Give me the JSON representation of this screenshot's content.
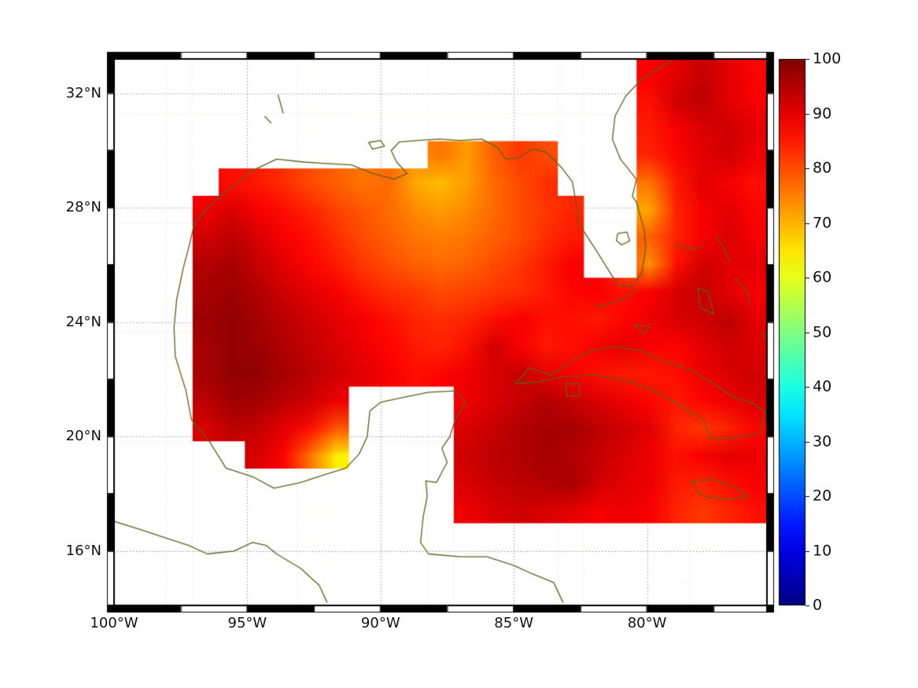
{
  "chart_data": {
    "type": "heatmap",
    "title": "",
    "colormap": "jet",
    "extent": {
      "lon_min": -100,
      "lon_max": -75.5,
      "lat_min": 14.1,
      "lat_max": 33.2
    },
    "x_axis": {
      "ticks": [
        {
          "lon": -100,
          "label": "100°W"
        },
        {
          "lon": -95,
          "label": "95°W"
        },
        {
          "lon": -90,
          "label": "90°W"
        },
        {
          "lon": -85,
          "label": "85°W"
        },
        {
          "lon": -80,
          "label": "80°W"
        }
      ]
    },
    "y_axis": {
      "ticks": [
        {
          "lat": 32,
          "label": "32°N"
        },
        {
          "lat": 28,
          "label": "28°N"
        },
        {
          "lat": 24,
          "label": "24°N"
        },
        {
          "lat": 20,
          "label": "20°N"
        },
        {
          "lat": 16,
          "label": "16°N"
        }
      ]
    },
    "gridlines": {
      "lons": [
        -100,
        -95,
        -90,
        -85,
        -80
      ],
      "lats": [
        16,
        20,
        24,
        28,
        32
      ]
    },
    "colorbar": {
      "min": 0,
      "max": 100,
      "ticks": [
        100,
        90,
        80,
        70,
        60,
        50,
        40,
        30,
        20,
        10,
        0
      ]
    },
    "frame": {
      "x_interval": 2.5,
      "y_interval": 2
    },
    "colors": {
      "coastline": "#5f5f1f",
      "gridline": "#9a9a9a",
      "land": "#ffffff",
      "frame": "#000000"
    },
    "field": {
      "nrows": 20,
      "ncols": 25,
      "values": [
        [
          null,
          null,
          null,
          null,
          null,
          null,
          null,
          null,
          null,
          null,
          null,
          null,
          null,
          null,
          null,
          null,
          null,
          null,
          null,
          null,
          88,
          90,
          93,
          90,
          87
        ],
        [
          null,
          null,
          null,
          null,
          null,
          null,
          null,
          null,
          null,
          null,
          null,
          null,
          null,
          null,
          null,
          null,
          null,
          null,
          null,
          null,
          86,
          92,
          94,
          90,
          88
        ],
        [
          null,
          null,
          null,
          null,
          null,
          null,
          null,
          null,
          null,
          null,
          null,
          null,
          null,
          null,
          null,
          null,
          null,
          null,
          null,
          null,
          85,
          88,
          91,
          92,
          90
        ],
        [
          null,
          null,
          null,
          null,
          null,
          null,
          null,
          null,
          null,
          null,
          null,
          null,
          76,
          72,
          78,
          82,
          80,
          null,
          null,
          null,
          84,
          87,
          90,
          92,
          89
        ],
        [
          null,
          null,
          null,
          null,
          86,
          85,
          83,
          80,
          78,
          76,
          77,
          71,
          69,
          72,
          77,
          80,
          83,
          null,
          null,
          null,
          76,
          85,
          90,
          88,
          86
        ],
        [
          null,
          null,
          null,
          89,
          91,
          88,
          86,
          84,
          81,
          79,
          77,
          74,
          72,
          74,
          77,
          80,
          82,
          84,
          null,
          null,
          71,
          84,
          88,
          90,
          87
        ],
        [
          null,
          null,
          null,
          92,
          94,
          91,
          88,
          86,
          83,
          80,
          78,
          76,
          75,
          76,
          78,
          80,
          83,
          85,
          null,
          null,
          78,
          84,
          88,
          91,
          88
        ],
        [
          null,
          null,
          null,
          95,
          96,
          93,
          90,
          87,
          85,
          82,
          80,
          78,
          77,
          78,
          80,
          82,
          85,
          88,
          null,
          null,
          73,
          86,
          92,
          90,
          90
        ],
        [
          null,
          null,
          null,
          96,
          97,
          95,
          92,
          90,
          88,
          85,
          83,
          82,
          80,
          81,
          82,
          83,
          85,
          87,
          88,
          86,
          88,
          91,
          93,
          90,
          88
        ],
        [
          null,
          null,
          null,
          97,
          98,
          96,
          94,
          92,
          90,
          88,
          86,
          84,
          83,
          84,
          86,
          88,
          86,
          86,
          85,
          87,
          89,
          91,
          92,
          94,
          90
        ],
        [
          null,
          null,
          null,
          96,
          98,
          97,
          95,
          93,
          91,
          89,
          87,
          85,
          84,
          86,
          92,
          88,
          85,
          86,
          88,
          90,
          88,
          87,
          90,
          92,
          91
        ],
        [
          null,
          null,
          null,
          96,
          98,
          98,
          96,
          94,
          92,
          90,
          88,
          86,
          87,
          89,
          91,
          93,
          90,
          88,
          86,
          85,
          85,
          86,
          89,
          91,
          92
        ],
        [
          null,
          null,
          null,
          94,
          97,
          96,
          94,
          92,
          89,
          null,
          null,
          null,
          null,
          89,
          91,
          93,
          95,
          93,
          91,
          89,
          87,
          85,
          87,
          89,
          91
        ],
        [
          null,
          null,
          null,
          91,
          94,
          93,
          90,
          86,
          79,
          null,
          null,
          null,
          null,
          91,
          93,
          95,
          96,
          96,
          94,
          92,
          90,
          84,
          82,
          84,
          87
        ],
        [
          null,
          null,
          null,
          null,
          null,
          91,
          87,
          76,
          64,
          null,
          null,
          null,
          null,
          92,
          94,
          95,
          96,
          95,
          93,
          91,
          89,
          86,
          88,
          90,
          89
        ],
        [
          null,
          null,
          null,
          null,
          null,
          null,
          null,
          null,
          null,
          null,
          null,
          null,
          null,
          91,
          93,
          94,
          95,
          96,
          92,
          90,
          89,
          85,
          84,
          86,
          88
        ],
        [
          null,
          null,
          null,
          null,
          null,
          null,
          null,
          null,
          null,
          null,
          null,
          null,
          null,
          89,
          91,
          92,
          91,
          90,
          88,
          89,
          88,
          84,
          82,
          84,
          86
        ],
        [
          null,
          null,
          null,
          null,
          null,
          null,
          null,
          null,
          null,
          null,
          null,
          null,
          null,
          null,
          null,
          null,
          null,
          null,
          null,
          null,
          null,
          null,
          null,
          null,
          null
        ],
        [
          null,
          null,
          null,
          null,
          null,
          null,
          null,
          null,
          null,
          null,
          null,
          null,
          null,
          null,
          null,
          null,
          null,
          null,
          null,
          null,
          null,
          null,
          null,
          null,
          null
        ],
        [
          null,
          null,
          null,
          null,
          null,
          null,
          null,
          null,
          null,
          null,
          null,
          null,
          null,
          null,
          null,
          null,
          null,
          null,
          null,
          null,
          null,
          null,
          null,
          null,
          null
        ]
      ]
    },
    "coastlines": {
      "us_gulf_atlantic": [
        [
          -97.4,
          25.9
        ],
        [
          -97.2,
          26.6
        ],
        [
          -97.0,
          27.4
        ],
        [
          -96.4,
          28.1
        ],
        [
          -95.6,
          28.7
        ],
        [
          -94.8,
          29.3
        ],
        [
          -93.9,
          29.7
        ],
        [
          -92.9,
          29.6
        ],
        [
          -92.1,
          29.55
        ],
        [
          -91.1,
          29.5
        ],
        [
          -90.3,
          29.2
        ],
        [
          -89.5,
          29.0
        ],
        [
          -89.0,
          29.2
        ],
        [
          -89.4,
          29.6
        ],
        [
          -89.6,
          30.0
        ],
        [
          -89.3,
          30.3
        ],
        [
          -88.6,
          30.35
        ],
        [
          -87.8,
          30.4
        ],
        [
          -87.0,
          30.35
        ],
        [
          -86.2,
          30.4
        ],
        [
          -85.6,
          30.1
        ],
        [
          -85.3,
          29.7
        ],
        [
          -84.8,
          29.75
        ],
        [
          -84.3,
          30.05
        ],
        [
          -83.8,
          29.95
        ],
        [
          -83.2,
          29.4
        ],
        [
          -82.8,
          28.9
        ],
        [
          -82.65,
          28.1
        ],
        [
          -82.6,
          27.5
        ],
        [
          -81.9,
          26.5
        ],
        [
          -81.5,
          25.9
        ],
        [
          -81.1,
          25.3
        ],
        [
          -80.6,
          25.25
        ],
        [
          -80.2,
          25.7
        ],
        [
          -80.05,
          26.6
        ],
        [
          -80.1,
          27.2
        ],
        [
          -80.4,
          28.2
        ],
        [
          -80.55,
          28.4
        ],
        [
          -80.4,
          29.0
        ],
        [
          -81.0,
          29.7
        ],
        [
          -81.3,
          30.4
        ],
        [
          -81.2,
          31.2
        ],
        [
          -80.8,
          31.9
        ],
        [
          -80.2,
          32.5
        ],
        [
          -79.5,
          32.9
        ],
        [
          -78.9,
          33.3
        ]
      ],
      "mexico_central_america": [
        [
          -97.4,
          25.9
        ],
        [
          -97.65,
          24.8
        ],
        [
          -97.75,
          23.8
        ],
        [
          -97.7,
          22.8
        ],
        [
          -97.3,
          21.6
        ],
        [
          -97.1,
          20.6
        ],
        [
          -96.4,
          19.8
        ],
        [
          -95.8,
          18.9
        ],
        [
          -94.8,
          18.6
        ],
        [
          -94.0,
          18.2
        ],
        [
          -93.0,
          18.4
        ],
        [
          -92.0,
          18.7
        ],
        [
          -91.3,
          18.9
        ],
        [
          -90.8,
          19.4
        ],
        [
          -90.5,
          20.0
        ],
        [
          -90.4,
          20.9
        ],
        [
          -90.0,
          21.2
        ],
        [
          -89.0,
          21.4
        ],
        [
          -88.2,
          21.55
        ],
        [
          -87.2,
          21.6
        ],
        [
          -86.8,
          21.2
        ],
        [
          -87.2,
          20.6
        ],
        [
          -87.4,
          20.0
        ],
        [
          -87.7,
          19.6
        ],
        [
          -87.5,
          19.1
        ],
        [
          -87.9,
          18.4
        ],
        [
          -88.3,
          18.45
        ],
        [
          -88.25,
          17.9
        ],
        [
          -88.4,
          17.2
        ],
        [
          -88.5,
          16.3
        ],
        [
          -88.2,
          15.9
        ],
        [
          -87.0,
          15.8
        ],
        [
          -86.0,
          15.8
        ],
        [
          -85.0,
          15.5
        ],
        [
          -84.3,
          15.2
        ],
        [
          -83.5,
          14.9
        ],
        [
          -83.15,
          14.2
        ]
      ],
      "pacific_coast": [
        [
          -100.2,
          17.1
        ],
        [
          -99.0,
          16.75
        ],
        [
          -98.2,
          16.5
        ],
        [
          -97.2,
          16.2
        ],
        [
          -96.5,
          15.9
        ],
        [
          -95.5,
          16.0
        ],
        [
          -94.8,
          16.3
        ],
        [
          -94.3,
          16.2
        ],
        [
          -93.9,
          15.9
        ],
        [
          -93.0,
          15.4
        ],
        [
          -92.3,
          14.8
        ],
        [
          -92.0,
          14.2
        ]
      ],
      "cuba": [
        [
          -84.95,
          21.85
        ],
        [
          -84.4,
          22.4
        ],
        [
          -83.6,
          22.15
        ],
        [
          -82.9,
          22.6
        ],
        [
          -82.1,
          23.0
        ],
        [
          -81.2,
          23.15
        ],
        [
          -80.2,
          23.0
        ],
        [
          -79.3,
          22.6
        ],
        [
          -78.4,
          22.35
        ],
        [
          -77.6,
          21.9
        ],
        [
          -76.8,
          21.4
        ],
        [
          -76.0,
          21.15
        ],
        [
          -75.55,
          20.85
        ],
        [
          -75.8,
          20.1
        ],
        [
          -76.8,
          19.95
        ],
        [
          -77.6,
          19.9
        ],
        [
          -77.9,
          20.6
        ],
        [
          -78.6,
          21.0
        ],
        [
          -79.6,
          21.55
        ],
        [
          -80.7,
          21.95
        ],
        [
          -81.9,
          22.15
        ],
        [
          -83.1,
          22.1
        ],
        [
          -84.2,
          21.9
        ],
        [
          -84.95,
          21.85
        ]
      ],
      "isla_juventud": [
        [
          -83.05,
          21.85
        ],
        [
          -82.55,
          21.85
        ],
        [
          -82.5,
          21.45
        ],
        [
          -83.0,
          21.4
        ],
        [
          -83.05,
          21.85
        ]
      ],
      "jamaica": [
        [
          -78.35,
          18.45
        ],
        [
          -77.5,
          18.5
        ],
        [
          -76.6,
          18.2
        ],
        [
          -76.2,
          17.9
        ],
        [
          -77.1,
          17.8
        ],
        [
          -78.0,
          17.95
        ],
        [
          -78.35,
          18.45
        ]
      ],
      "florida_keys": [
        [
          -80.35,
          25.15
        ],
        [
          -80.8,
          24.85
        ],
        [
          -81.4,
          24.65
        ],
        [
          -81.9,
          24.55
        ]
      ],
      "lake_okeechobee": [
        [
          -81.1,
          27.1
        ],
        [
          -80.75,
          27.15
        ],
        [
          -80.65,
          26.85
        ],
        [
          -80.95,
          26.7
        ],
        [
          -81.15,
          26.85
        ],
        [
          -81.1,
          27.1
        ]
      ],
      "lake_pontchartrain": [
        [
          -90.45,
          30.28
        ],
        [
          -90.0,
          30.35
        ],
        [
          -89.85,
          30.15
        ],
        [
          -90.3,
          30.05
        ],
        [
          -90.45,
          30.28
        ]
      ],
      "grand_bahama": [
        [
          -78.95,
          26.7
        ],
        [
          -78.2,
          26.55
        ],
        [
          -77.9,
          26.7
        ]
      ],
      "abaco": [
        [
          -77.4,
          27.0
        ],
        [
          -77.1,
          26.55
        ],
        [
          -76.9,
          26.1
        ]
      ],
      "andros": [
        [
          -78.1,
          25.2
        ],
        [
          -77.7,
          25.05
        ],
        [
          -77.5,
          24.3
        ],
        [
          -78.0,
          24.5
        ],
        [
          -78.1,
          25.2
        ]
      ],
      "eleuthera": [
        [
          -76.7,
          25.55
        ],
        [
          -76.2,
          25.0
        ],
        [
          -76.15,
          24.6
        ]
      ],
      "long_island_bahamas": [
        [
          -75.7,
          23.6
        ],
        [
          -75.2,
          23.1
        ]
      ],
      "cay_sal_bank": [
        [
          -80.5,
          23.9
        ],
        [
          -79.9,
          23.85
        ],
        [
          -80.1,
          23.6
        ],
        [
          -80.5,
          23.9
        ]
      ],
      "toledo_bend": [
        [
          -93.85,
          31.95
        ],
        [
          -93.65,
          31.3
        ]
      ],
      "sam_rayburn": [
        [
          -94.35,
          31.2
        ],
        [
          -94.1,
          30.95
        ]
      ]
    }
  }
}
